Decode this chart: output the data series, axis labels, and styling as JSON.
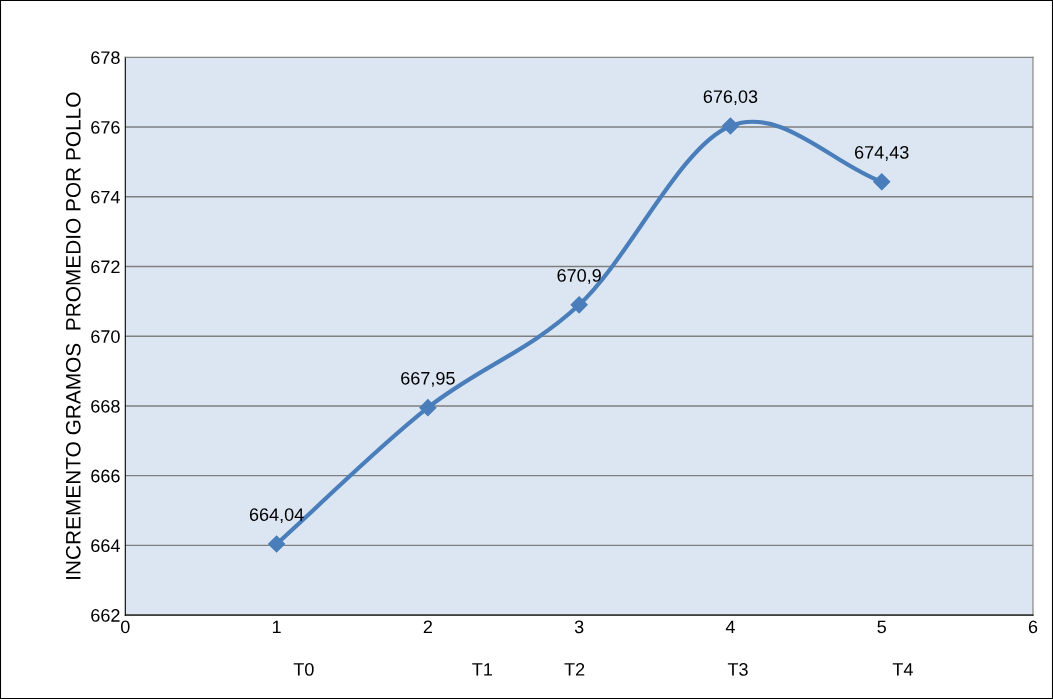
{
  "chart_data": {
    "type": "line",
    "x": [
      1,
      2,
      3,
      4,
      5
    ],
    "series": [
      {
        "color": "#4a7ebb",
        "values": [
          664.04,
          667.95,
          670.9,
          676.03,
          674.43
        ],
        "value_labels": [
          "664,04",
          "667,95",
          "670,9",
          "676,03",
          "674,43"
        ]
      }
    ],
    "ylabel": "INCREMENTO GRAMOS  PROMEDIO POR POLLO",
    "xlim": [
      0,
      6
    ],
    "xticks": [
      0,
      1,
      2,
      3,
      4,
      5,
      6
    ],
    "ylim": [
      662,
      678
    ],
    "yticks": [
      662,
      664,
      666,
      668,
      670,
      672,
      674,
      676,
      678
    ],
    "annotations": [
      "T0",
      "T1",
      "T2",
      "T3",
      "T4"
    ],
    "grid": "y",
    "marker": "diamond",
    "line_style": "solid",
    "legend": false
  }
}
